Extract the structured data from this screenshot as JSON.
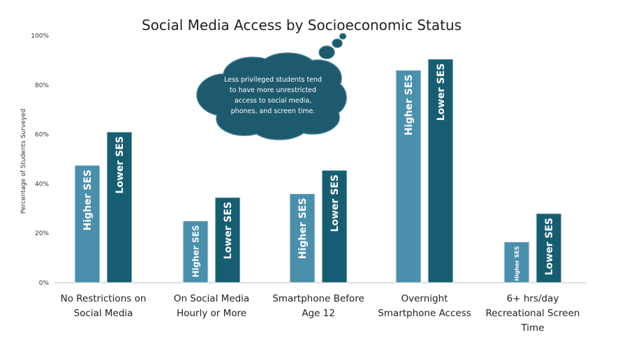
{
  "chart_data": {
    "type": "bar",
    "title": "Social Media Access by Socioeconomic Status",
    "ylabel": "Percentage of Students Surveyed",
    "xlabel": "",
    "ylim": [
      0,
      100
    ],
    "yticks": [
      "0%",
      "20%",
      "40%",
      "60%",
      "80%",
      "100%"
    ],
    "categories": [
      [
        "No Restrictions on",
        "Social Media"
      ],
      [
        "On Social Media",
        "Hourly or More"
      ],
      [
        "Smartphone Before",
        "Age 12"
      ],
      [
        "Overnight",
        "Smartphone Access"
      ],
      [
        "6+ hrs/day",
        "Recreational Screen",
        "Time"
      ]
    ],
    "series": [
      {
        "name": "Higher SES",
        "color": "#4a90ad",
        "values": [
          47.5,
          25,
          36,
          86,
          16.5
        ]
      },
      {
        "name": "Lower SES",
        "color": "#165d72",
        "values": [
          61,
          34.5,
          45.5,
          90.5,
          28
        ]
      }
    ],
    "grid": false,
    "legend": "none",
    "annotation": {
      "lines": [
        "Less privileged students tend",
        "to have more unrestricted",
        "access to social media,",
        "phones, and screen time."
      ],
      "color": "#1e5a6e"
    }
  }
}
